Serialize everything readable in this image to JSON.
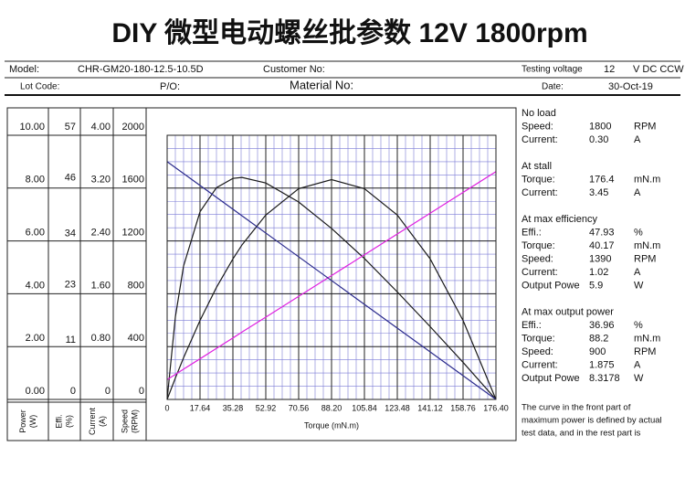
{
  "header": {
    "title": "DIY 微型电动螺丝批参数 12V 1800rpm",
    "model_label": "Model:",
    "model": "CHR-GM20-180-12.5-10.5D",
    "customer_label": "Customer No:",
    "voltage_label": "Testing voltage",
    "voltage": "12",
    "voltage_unit": "V DC CCW",
    "lot_label": "Lot Code:",
    "po_label": "P/O:",
    "material_label": "Material No:",
    "date_label": "Date:",
    "date": "30-Oct-19"
  },
  "specs": {
    "sections": [
      {
        "title": "No load",
        "rows": [
          [
            "Speed:",
            "1800",
            "RPM"
          ],
          [
            "Current:",
            "0.30",
            "A"
          ]
        ]
      },
      {
        "title": "At stall",
        "rows": [
          [
            "Torque:",
            "176.4",
            "mN.m"
          ],
          [
            "Current:",
            "3.45",
            "A"
          ]
        ]
      },
      {
        "title": "At max efficiency",
        "rows": [
          [
            "Effi.:",
            "47.93",
            "%"
          ],
          [
            "Torque:",
            "40.17",
            "mN.m"
          ],
          [
            "Speed:",
            "1390",
            "RPM"
          ],
          [
            "Current:",
            "1.02",
            "A"
          ],
          [
            "Output Powe",
            "5.9",
            "W"
          ]
        ]
      },
      {
        "title": "At max output power",
        "rows": [
          [
            "Effi.:",
            "36.96",
            "%"
          ],
          [
            "Torque:",
            "88.2",
            "mN.m"
          ],
          [
            "Speed:",
            "900",
            "RPM"
          ],
          [
            "Current:",
            "1.875",
            "A"
          ],
          [
            "Output Powe",
            "8.3178",
            "W"
          ]
        ]
      }
    ],
    "note_lines": [
      "The curve in the front part of",
      "maximum power is defined by actual",
      "test data, and in the rest part is"
    ]
  },
  "chart_data": {
    "type": "line",
    "x_label": "Torque (mN.m)",
    "x": [
      0,
      4.41,
      8.82,
      17.64,
      26.46,
      35.28,
      40.17,
      52.92,
      70.56,
      88.2,
      105.84,
      123.48,
      141.12,
      158.76,
      176.4
    ],
    "xlim": [
      0,
      176.4
    ],
    "xticks": [
      0,
      17.64,
      35.28,
      52.92,
      70.56,
      {
        "value": 88.2,
        "label": "88.20"
      },
      105.84,
      123.48,
      141.12,
      158.76,
      {
        "value": 176.4,
        "label": "176.40"
      }
    ],
    "axes": {
      "y": {
        "label": "Power",
        "unit": "(W)",
        "lim": [
          0,
          10
        ],
        "ticks": [
          {
            "value": 0,
            "label": "0.00"
          },
          {
            "value": 2,
            "label": "2.00"
          },
          {
            "value": 4,
            "label": "4.00"
          },
          {
            "value": 6,
            "label": "6.00"
          },
          {
            "value": 8,
            "label": "8.00"
          },
          {
            "value": 10,
            "label": "10.00"
          }
        ]
      },
      "y2": {
        "label": "Effi.",
        "unit": "(%)",
        "lim": [
          0,
          57
        ],
        "ticks": [
          0,
          11,
          23,
          34,
          46,
          57
        ]
      },
      "y3": {
        "label": "Current",
        "unit": "(A)",
        "lim": [
          0,
          4
        ],
        "ticks": [
          0,
          {
            "value": 0.8,
            "label": "0.80"
          },
          {
            "value": 1.6,
            "label": "1.60"
          },
          {
            "value": 2.4,
            "label": "2.40"
          },
          {
            "value": 3.2,
            "label": "3.20"
          },
          {
            "value": 4,
            "label": "4.00"
          }
        ]
      },
      "y4": {
        "label": "Speed",
        "unit": "(RPM)",
        "lim": [
          0,
          2000
        ],
        "ticks": [
          0,
          400,
          800,
          1200,
          1600,
          2000
        ]
      }
    },
    "series": [
      {
        "axis": "y",
        "color": "#1a1a1a",
        "values": [
          0,
          0.81,
          1.58,
          2.99,
          4.24,
          5.32,
          5.85,
          6.98,
          7.98,
          8.32,
          7.98,
          6.98,
          5.32,
          2.99,
          0
        ]
      },
      {
        "axis": "y2",
        "color": "#1a1a1a",
        "values": [
          0,
          17.8,
          28.8,
          40.5,
          45.7,
          47.7,
          47.9,
          46.7,
          42.6,
          36.9,
          30.4,
          23.2,
          15.7,
          8.0,
          0
        ]
      },
      {
        "axis": "y3",
        "color": "#e020e0",
        "values": [
          0.3,
          0.379,
          0.458,
          0.615,
          0.773,
          0.93,
          1.02,
          1.245,
          1.56,
          1.875,
          2.19,
          2.505,
          2.82,
          3.135,
          3.45
        ]
      },
      {
        "axis": "y4",
        "color": "#2a2a8c",
        "values": [
          1800,
          1755,
          1710,
          1620,
          1530,
          1440,
          1390,
          1260,
          1080,
          900,
          720,
          540,
          360,
          180,
          0
        ]
      }
    ],
    "grid": true
  }
}
